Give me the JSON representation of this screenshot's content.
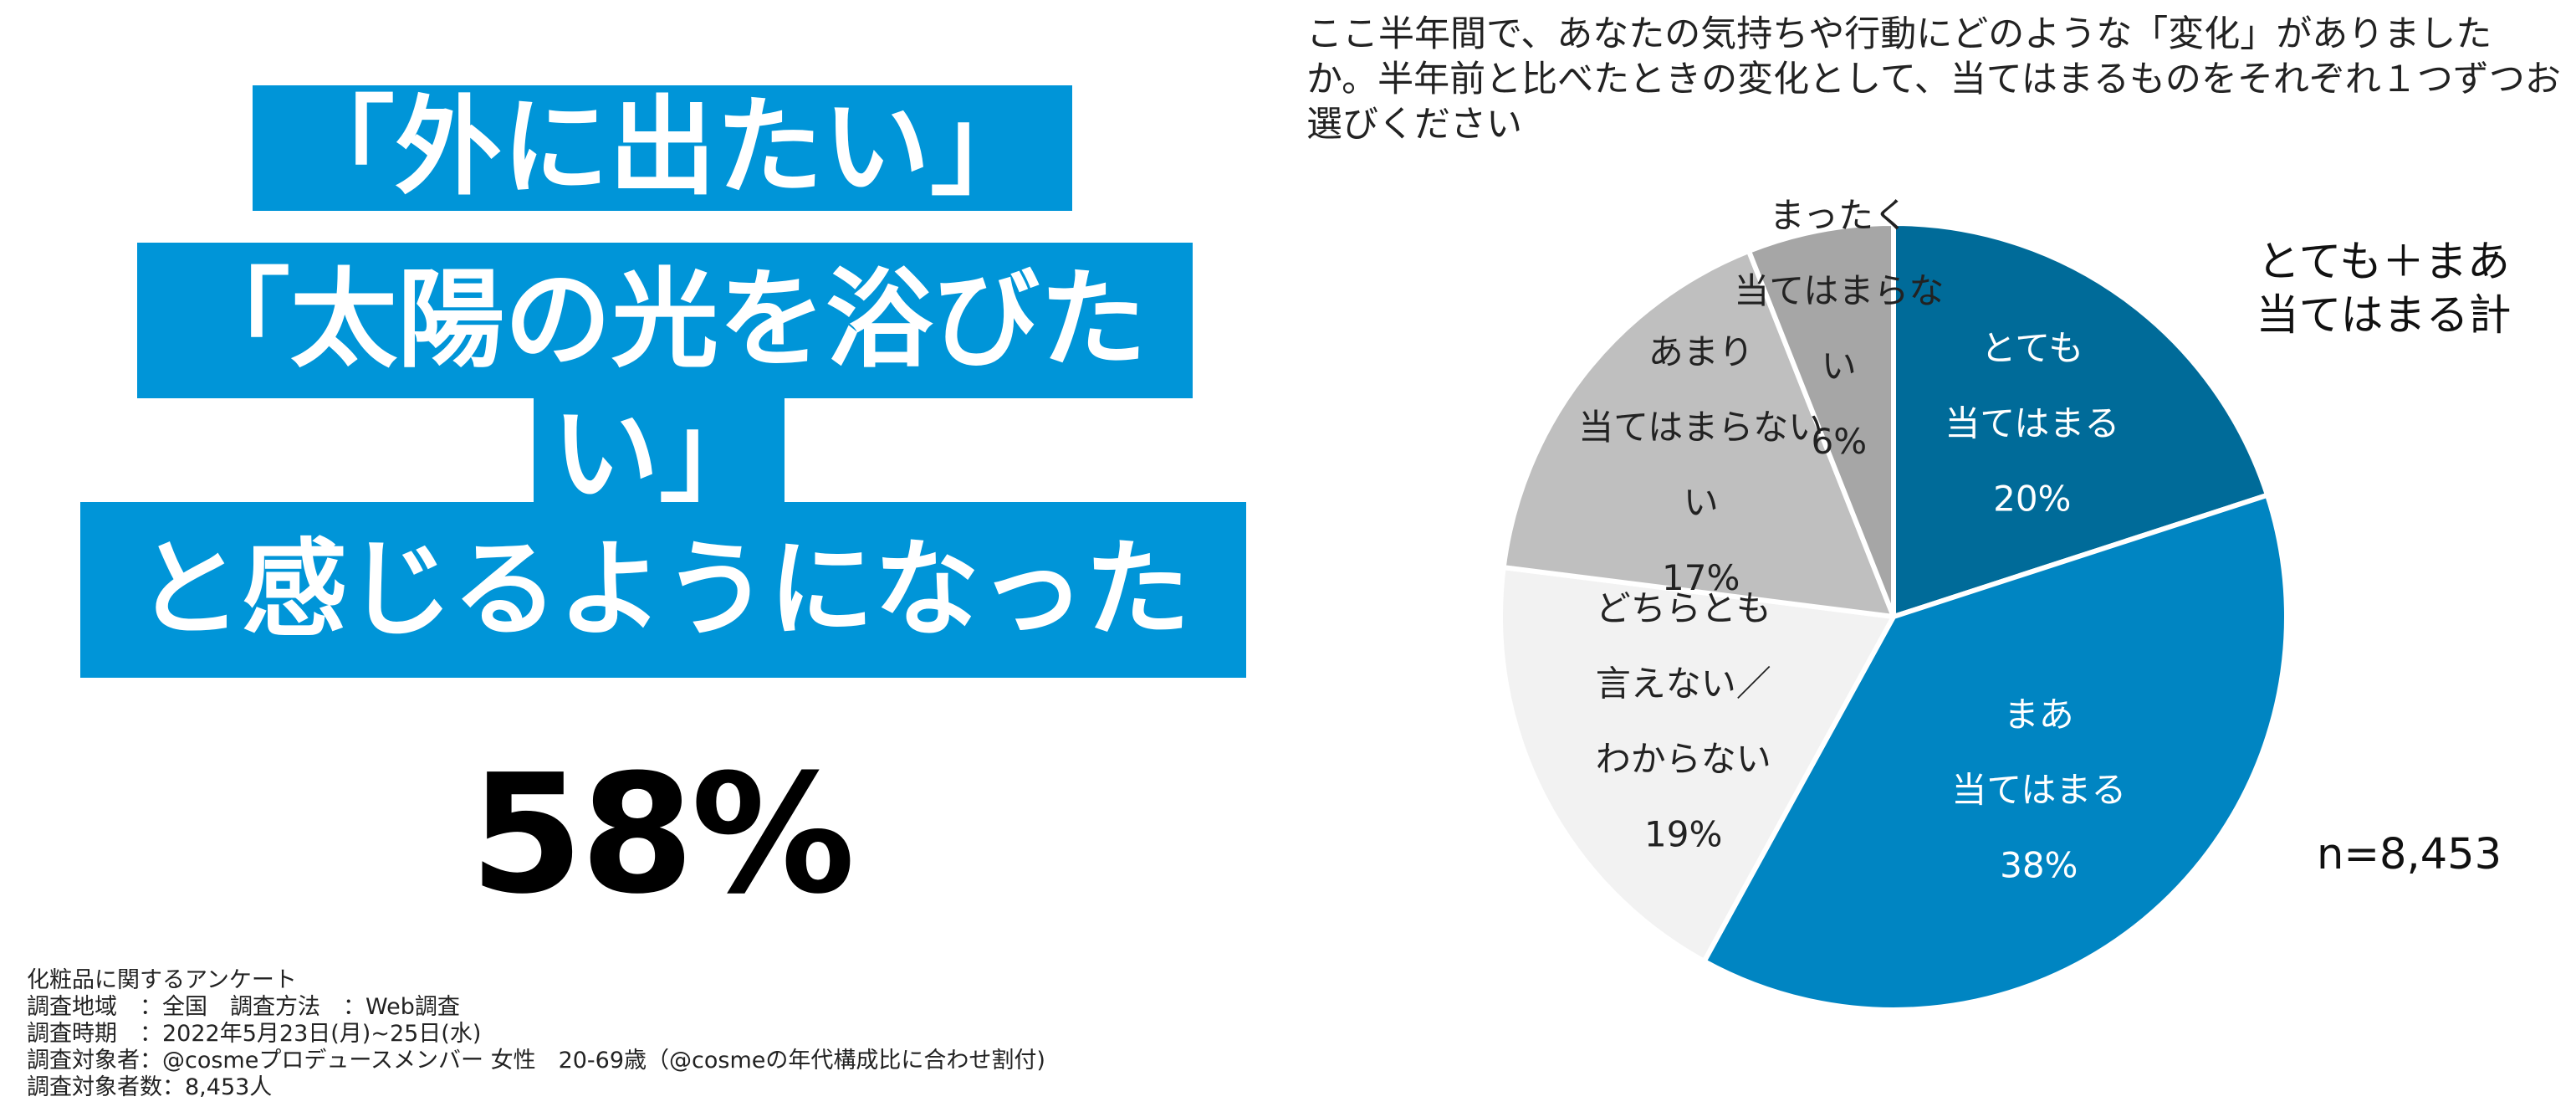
{
  "headline": {
    "line1": "「外に出たい」",
    "line2": "「太陽の光を浴びた",
    "line3": "い」",
    "line4": "と感じるようになった"
  },
  "big_percent": "58%",
  "question": "ここ半年間で、あなたの気持ちや行動にどのような「変化」がありましたか。半年前と比べたときの変化として、当てはまるものをそれぞれ１つずつお選びください",
  "sum_label": {
    "line1": "とても＋まあ",
    "line2": "当てはまる計"
  },
  "n_label": "n=8,453",
  "footnotes": [
    "化粧品に関するアンケート",
    "調査地域　：全国　調査方法　：Web調査",
    "調査時期　：2022年5月23日(月)~25日(水)",
    "調査対象者：@cosmeプロデュースメンバー 女性　20-69歳（@cosmeの年代構成比に合わせ割付)",
    "調査対象者数：8,453人"
  ],
  "colors": {
    "accent": "#0095d8",
    "slice_very": "#006b99",
    "slice_somewhat": "#0085c2",
    "slice_neutral": "#f2f2f2",
    "slice_not_much": "#bfbfbf",
    "slice_not_at_all": "#a6a6a6"
  },
  "chart_data": {
    "type": "pie",
    "title": "",
    "start": "12 o'clock",
    "direction": "clockwise",
    "slices": [
      {
        "lines": [
          "とても",
          "当てはまる",
          "20%"
        ],
        "value": 20,
        "color": "#006b99",
        "text_color": "#ffffff"
      },
      {
        "lines": [
          "まあ",
          "当てはまる",
          "38%"
        ],
        "value": 38,
        "color": "#0085c2",
        "text_color": "#ffffff"
      },
      {
        "lines": [
          "どちらとも",
          "言えない／",
          "わからない",
          "19%"
        ],
        "value": 19,
        "color": "#f2f2f2",
        "text_color": "#222222"
      },
      {
        "lines": [
          "あまり",
          "当てはまらない",
          "い",
          "17%"
        ],
        "value": 17,
        "color": "#bfbfbf",
        "text_color": "#222222"
      },
      {
        "lines": [
          "まったく",
          "当てはまらな",
          "い",
          "6%"
        ],
        "value": 6,
        "color": "#a6a6a6",
        "text_color": "#222222"
      }
    ]
  }
}
